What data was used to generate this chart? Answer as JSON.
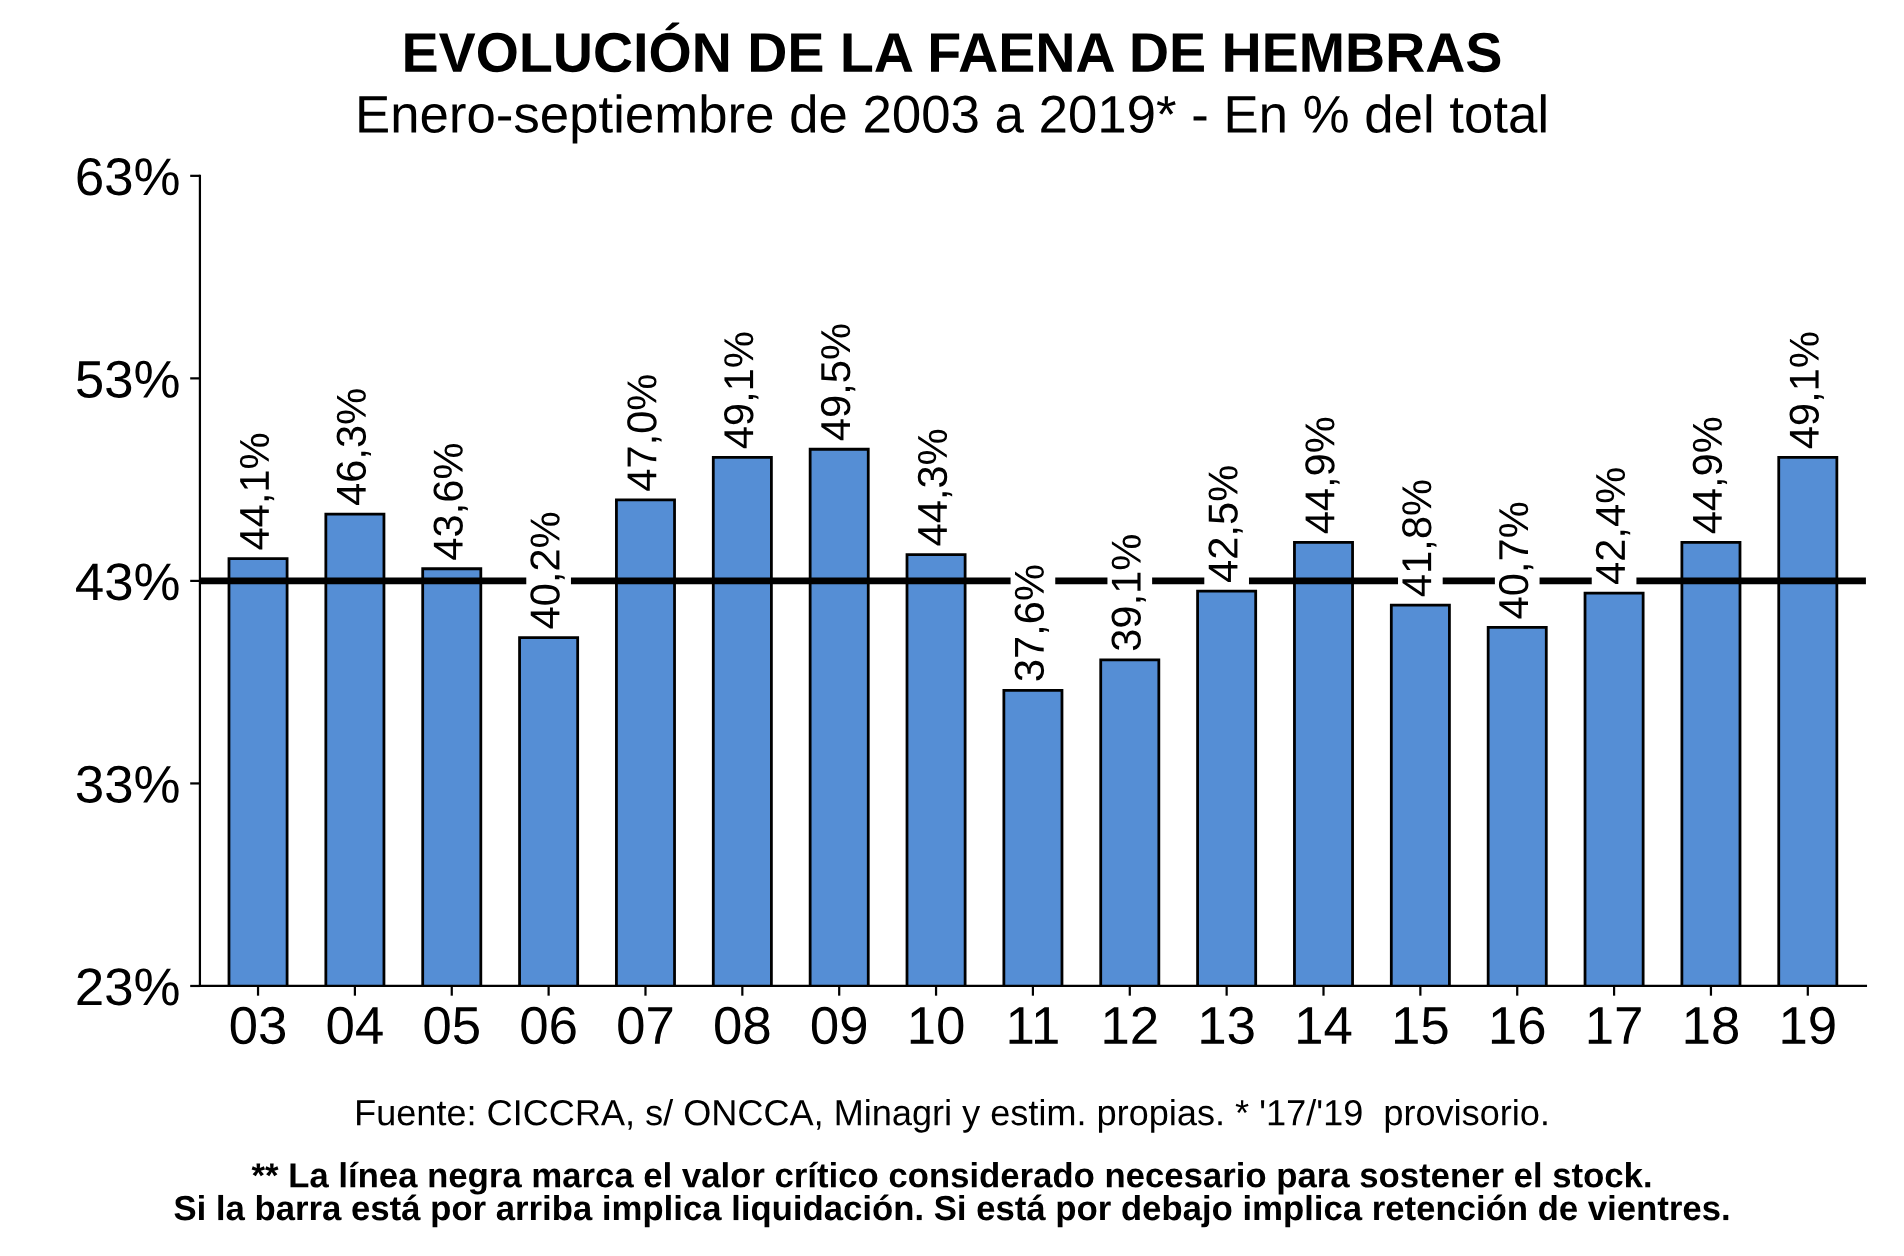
{
  "chart_data": {
    "type": "bar",
    "title": "EVOLUCIÓN DE LA FAENA DE HEMBRAS",
    "subtitle": "Enero-septiembre de 2003 a 2019* - En % del total",
    "categories": [
      "03",
      "04",
      "05",
      "06",
      "07",
      "08",
      "09",
      "10",
      "11",
      "12",
      "13",
      "14",
      "15",
      "16",
      "17",
      "18",
      "19"
    ],
    "values": [
      44.1,
      46.3,
      43.6,
      40.2,
      47.0,
      49.1,
      49.5,
      44.3,
      37.6,
      39.1,
      42.5,
      44.9,
      41.8,
      40.7,
      42.4,
      44.9,
      49.1
    ],
    "value_labels": [
      "44,1%",
      "46,3%",
      "43,6%",
      "40,2%",
      "47,0%",
      "49,1%",
      "49,5%",
      "44,3%",
      "37,6%",
      "39,1%",
      "42,5%",
      "44,9%",
      "41,8%",
      "40,7%",
      "42,4%",
      "44,9%",
      "49,1%"
    ],
    "color": "#558ed5",
    "ylim": [
      23,
      63
    ],
    "yticks": [
      {
        "value": 23,
        "label": "23%"
      },
      {
        "value": 33,
        "label": "33%"
      },
      {
        "value": 43,
        "label": "43%"
      },
      {
        "value": 53,
        "label": "53%"
      },
      {
        "value": 63,
        "label": "63%"
      }
    ],
    "ref_lines": [
      {
        "axis": "y",
        "value": 43,
        "color": "#000000"
      }
    ],
    "grid": false,
    "legend": false,
    "annotations": [
      "Fuente: CICCRA, s/ ONCCA, Minagri y estim. propias. * '17/'19  provisorio.",
      "** La línea negra marca el valor crítico considerado necesario para sostener el stock.\nSi la barra está por arriba implica liquidación. Si está por debajo implica retención de vientres."
    ]
  }
}
